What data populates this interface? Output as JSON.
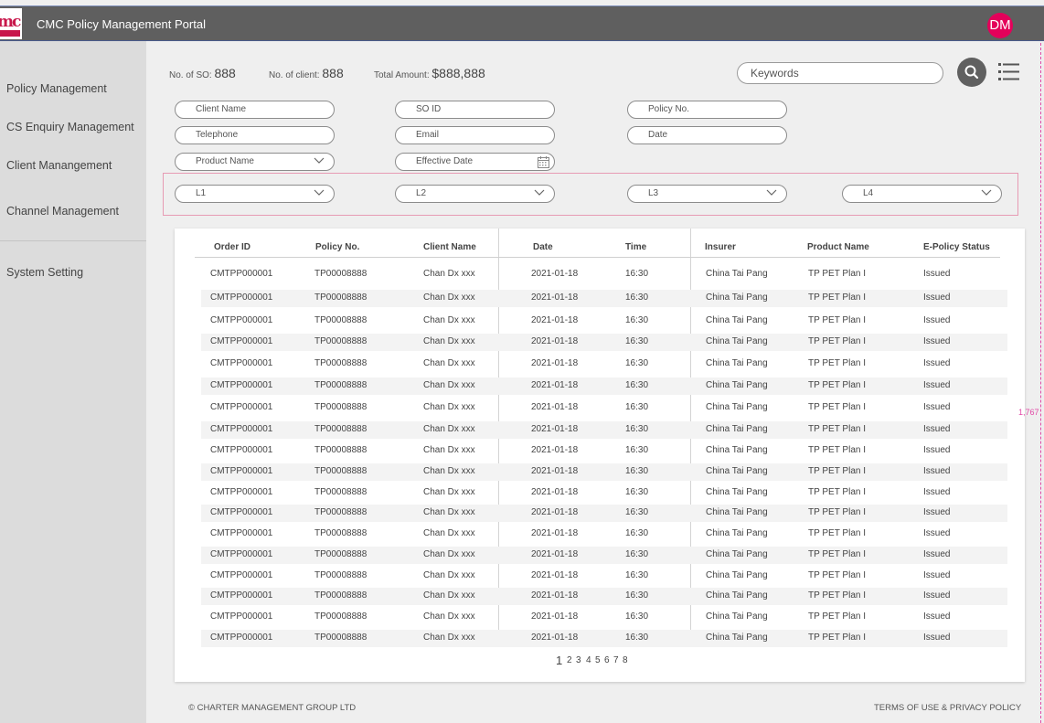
{
  "header": {
    "title": "CMC Policy Management Portal",
    "avatar_initials": "DM"
  },
  "sidebar": {
    "items": [
      {
        "label": "Policy  Management"
      },
      {
        "label": "CS Enquiry Management"
      },
      {
        "label": "Client Manangement"
      },
      {
        "label": "Channel Management"
      },
      {
        "label": "System Setting"
      }
    ]
  },
  "summary": {
    "so_label": "No. of SO:",
    "so_value": "888",
    "client_label": "No. of client:",
    "client_value": "888",
    "amount_label": "Total Amount:",
    "amount_value": "$888,888"
  },
  "search": {
    "placeholder": "Keywords"
  },
  "filters": {
    "client_name": "Client Name",
    "so_id": "SO ID",
    "policy_no": "Policy No.",
    "telephone": "Telephone",
    "email": "Email",
    "date": "Date",
    "product_name": "Product Name",
    "effective_date": "Effective Date",
    "l1": "L1",
    "l2": "L2",
    "l3": "L3",
    "l4": "L4"
  },
  "table": {
    "columns": [
      "Order ID",
      "Policy No.",
      "Client Name",
      "Date",
      "Time",
      "Insurer",
      "Product Name",
      "E-Policy Status"
    ],
    "rows": [
      [
        "CMTPP000001",
        "TP00008888",
        "Chan Dx xxx",
        "2021-01-18",
        "16:30",
        "China Tai Pang",
        "TP PET Plan I",
        "Issued"
      ],
      [
        "CMTPP000001",
        "TP00008888",
        "Chan Dx xxx",
        "2021-01-18",
        "16:30",
        "China Tai Pang",
        "TP PET Plan I",
        "Issued"
      ],
      [
        "CMTPP000001",
        "TP00008888",
        "Chan Dx xxx",
        "2021-01-18",
        "16:30",
        "China Tai Pang",
        "TP PET Plan I",
        "Issued"
      ],
      [
        "CMTPP000001",
        "TP00008888",
        "Chan Dx xxx",
        "2021-01-18",
        "16:30",
        "China Tai Pang",
        "TP PET Plan I",
        "Issued"
      ],
      [
        "CMTPP000001",
        "TP00008888",
        "Chan Dx xxx",
        "2021-01-18",
        "16:30",
        "China Tai Pang",
        "TP PET Plan I",
        "Issued"
      ],
      [
        "CMTPP000001",
        "TP00008888",
        "Chan Dx xxx",
        "2021-01-18",
        "16:30",
        "China Tai Pang",
        "TP PET Plan I",
        "Issued"
      ],
      [
        "CMTPP000001",
        "TP00008888",
        "Chan Dx xxx",
        "2021-01-18",
        "16:30",
        "China Tai Pang",
        "TP PET Plan I",
        "Issued"
      ],
      [
        "CMTPP000001",
        "TP00008888",
        "Chan Dx xxx",
        "2021-01-18",
        "16:30",
        "China Tai Pang",
        "TP PET Plan I",
        "Issued"
      ],
      [
        "CMTPP000001",
        "TP00008888",
        "Chan Dx xxx",
        "2021-01-18",
        "16:30",
        "China Tai Pang",
        "TP PET Plan I",
        "Issued"
      ],
      [
        "CMTPP000001",
        "TP00008888",
        "Chan Dx xxx",
        "2021-01-18",
        "16:30",
        "China Tai Pang",
        "TP PET Plan I",
        "Issued"
      ],
      [
        "CMTPP000001",
        "TP00008888",
        "Chan Dx xxx",
        "2021-01-18",
        "16:30",
        "China Tai Pang",
        "TP PET Plan I",
        "Issued"
      ],
      [
        "CMTPP000001",
        "TP00008888",
        "Chan Dx xxx",
        "2021-01-18",
        "16:30",
        "China Tai Pang",
        "TP PET Plan I",
        "Issued"
      ],
      [
        "CMTPP000001",
        "TP00008888",
        "Chan Dx xxx",
        "2021-01-18",
        "16:30",
        "China Tai Pang",
        "TP PET Plan I",
        "Issued"
      ],
      [
        "CMTPP000001",
        "TP00008888",
        "Chan Dx xxx",
        "2021-01-18",
        "16:30",
        "China Tai Pang",
        "TP PET Plan I",
        "Issued"
      ],
      [
        "CMTPP000001",
        "TP00008888",
        "Chan Dx xxx",
        "2021-01-18",
        "16:30",
        "China Tai Pang",
        "TP PET Plan I",
        "Issued"
      ],
      [
        "CMTPP000001",
        "TP00008888",
        "Chan Dx xxx",
        "2021-01-18",
        "16:30",
        "China Tai Pang",
        "TP PET Plan I",
        "Issued"
      ],
      [
        "CMTPP000001",
        "TP00008888",
        "Chan Dx xxx",
        "2021-01-18",
        "16:30",
        "China Tai Pang",
        "TP PET Plan I",
        "Issued"
      ],
      [
        "CMTPP000001",
        "TP00008888",
        "Chan Dx xxx",
        "2021-01-18",
        "16:30",
        "China Tai Pang",
        "TP PET Plan I",
        "Issued"
      ]
    ]
  },
  "pagination": {
    "pages": [
      "1",
      "2",
      "3",
      "4",
      "5",
      "6",
      "7",
      "8"
    ],
    "current": "1"
  },
  "footer": {
    "copyright": "© CHARTER MANAGEMENT GROUP LTD",
    "terms": "TERMS OF USE & PRIVACY POLICY"
  },
  "annotation": {
    "dimension": "1,767"
  },
  "colors": {
    "accent": "#e4005a",
    "header_bg": "#5f5f5f",
    "sidebar_bg": "#dcdcdc"
  }
}
